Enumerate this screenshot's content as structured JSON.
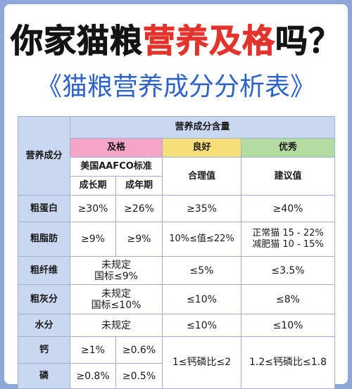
{
  "headline": {
    "part1": "你家猫粮",
    "part2": "营养及格",
    "part3": "吗？"
  },
  "subtitle": "《猫粮营养成分分析表》",
  "table": {
    "corner_label": "营养成分",
    "content_header": "营养成分含量",
    "pass_header": "及格",
    "good_header": "良好",
    "excellent_header": "优秀",
    "aafco_standard": "美国AAFCO标准",
    "reasonable_value": "合理值",
    "suggested_value": "建议值",
    "kitten": "成长期",
    "adult": "成年期",
    "rows": {
      "protein": {
        "label": "粗蛋白",
        "kitten": "≥30%",
        "adult": "≥26%",
        "good": "≥35%",
        "excellent": "≥40%"
      },
      "fat": {
        "label": "粗脂肪",
        "kitten": "≥9%",
        "adult": "≥9%",
        "good": "10%≤值≤22%",
        "excellent_line1": "正常猫 15 - 22%",
        "excellent_line2": "减肥猫 10 - 15%"
      },
      "fiber": {
        "label": "粗纤维",
        "pass_line1": "未规定",
        "pass_line2": "国标≤9%",
        "good": "≤5%",
        "excellent": "≤3.5%"
      },
      "ash": {
        "label": "粗灰分",
        "pass_line1": "未规定",
        "pass_line2": "国标≤10%",
        "good": "≤10%",
        "excellent": "≤8%"
      },
      "moisture": {
        "label": "水分",
        "pass": "未规定",
        "good": "≤10%",
        "excellent": "≤10%"
      },
      "calcium": {
        "label": "钙",
        "kitten": "≥1%",
        "adult": "≥0.6%"
      },
      "phosphorus": {
        "label": "磷",
        "kitten": "≥0.8%",
        "adult": "≥0.5%"
      },
      "ca_p_good": "1≤钙磷比≤2",
      "ca_p_excellent": "1.2≤钙磷比≤1.8"
    }
  },
  "colors": {
    "page_bg": "#8fa6d8",
    "headline_dark": "#141414",
    "headline_red": "#e2342c",
    "subtitle": "#2d62c9",
    "header_blue": "#c9d7f0",
    "header_pink": "#f5a6c8",
    "header_yellow": "#f6df79",
    "header_green": "#b4dca1"
  }
}
